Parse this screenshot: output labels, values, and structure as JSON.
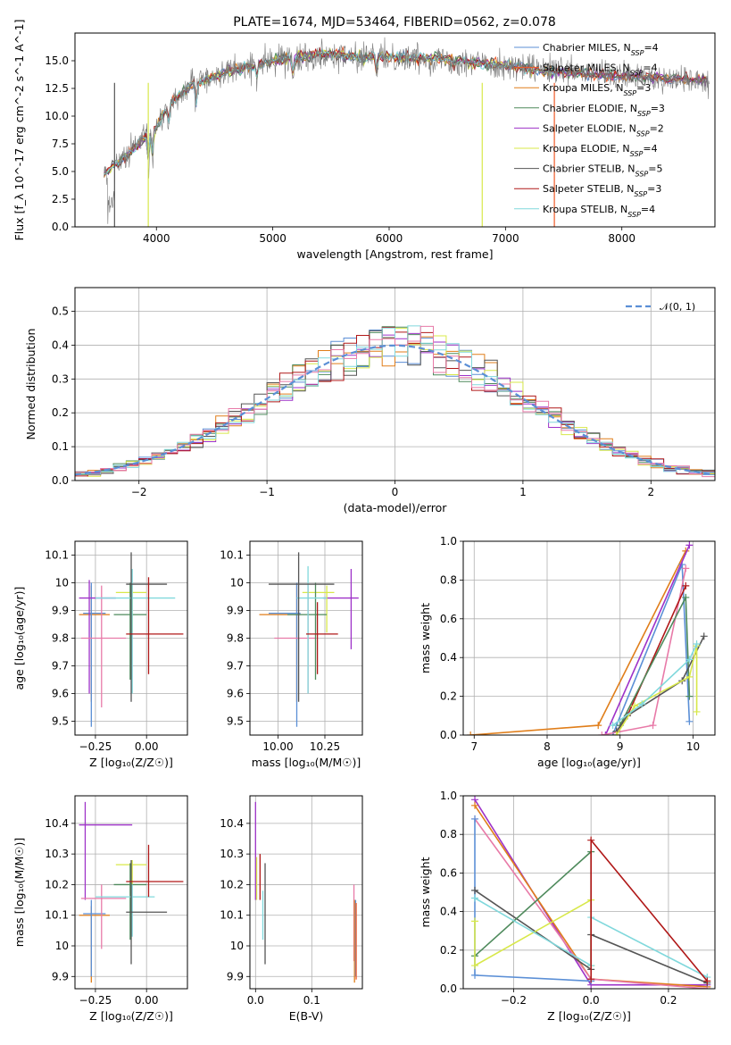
{
  "title": "PLATE=1674, MJD=53464, FIBERID=0562, z=0.078",
  "colors": {
    "Chabrier MILES": "#5b8fd6",
    "Salpeter MILES": "#f05a28",
    "Kroupa MILES": "#e07e1a",
    "Chabrier ELODIE": "#4e8a5c",
    "Salpeter ELODIE": "#9e32c8",
    "Kroupa ELODIE": "#d8e84a",
    "Chabrier STELIB": "#555555",
    "Salpeter STELIB": "#b01818",
    "Kroupa STELIB": "#80d8dc",
    "Pink": "#e87aa8"
  },
  "chart_data": [
    {
      "id": "spectrum",
      "type": "line",
      "xlabel": "wavelength [Angstrom, rest frame]",
      "ylabel": "Flux [f_λ 10^-17 erg cm^-2 s^-1 A^-1]",
      "xlim": [
        3300,
        8800
      ],
      "ylim": [
        0,
        17.5
      ],
      "xticks": [
        4000,
        5000,
        6000,
        7000,
        8000
      ],
      "yticks": [
        0.0,
        2.5,
        5.0,
        7.5,
        10.0,
        12.5,
        15.0
      ],
      "ytick_labels": [
        "0.0",
        "2.5",
        "5.0",
        "7.5",
        "10.0",
        "12.5",
        "15.0"
      ],
      "grid": false,
      "legend_placement": "upper-right",
      "legend": [
        {
          "label": "Chabrier MILES, N",
          "sub": "SSP",
          "eq": "=4"
        },
        {
          "label": "Salpeter MILES, N",
          "sub": "SSP",
          "eq": "=4"
        },
        {
          "label": "Kroupa MILES, N",
          "sub": "SSP",
          "eq": "=3"
        },
        {
          "label": "Chabrier ELODIE, N",
          "sub": "SSP",
          "eq": "=3"
        },
        {
          "label": "Salpeter ELODIE, N",
          "sub": "SSP",
          "eq": "=2"
        },
        {
          "label": "Kroupa ELODIE, N",
          "sub": "SSP",
          "eq": "=4"
        },
        {
          "label": "Chabrier STELIB, N",
          "sub": "SSP",
          "eq": "=5"
        },
        {
          "label": "Salpeter STELIB, N",
          "sub": "SSP",
          "eq": "=3"
        },
        {
          "label": "Kroupa STELIB, N",
          "sub": "SSP",
          "eq": "=4"
        }
      ],
      "legend_colors": [
        "#5b8fd6",
        "#f05a28",
        "#e07e1a",
        "#4e8a5c",
        "#9e32c8",
        "#d8e84a",
        "#555555",
        "#b01818",
        "#80d8dc"
      ],
      "series_range": [
        3550,
        8750
      ],
      "spectrum_shape": [
        [
          3550,
          4.8
        ],
        [
          3700,
          6.0
        ],
        [
          3900,
          8.0
        ],
        [
          4000,
          9.0
        ],
        [
          4100,
          11.0
        ],
        [
          4300,
          12.8
        ],
        [
          4600,
          14.0
        ],
        [
          5000,
          15.0
        ],
        [
          5400,
          15.6
        ],
        [
          5800,
          15.3
        ],
        [
          6000,
          15.3
        ],
        [
          6400,
          15.2
        ],
        [
          6800,
          14.8
        ],
        [
          7200,
          14.3
        ],
        [
          7450,
          14.0
        ],
        [
          8000,
          13.6
        ],
        [
          8750,
          13.2
        ]
      ]
    },
    {
      "id": "residuals",
      "type": "bar",
      "xlabel": "(data-model)/error",
      "ylabel": "Normed distribution",
      "xlim": [
        -2.5,
        2.5
      ],
      "ylim": [
        0,
        0.57
      ],
      "xticks": [
        -2,
        -1,
        0,
        1,
        2
      ],
      "xtick_labels": [
        "−2",
        "−1",
        "0",
        "1",
        "2"
      ],
      "yticks": [
        0.0,
        0.1,
        0.2,
        0.3,
        0.4,
        0.5
      ],
      "ytick_labels": [
        "0.0",
        "0.1",
        "0.2",
        "0.3",
        "0.4",
        "0.5"
      ],
      "grid": true,
      "legend_placement": "upper-right",
      "legend": [
        {
          "label": "𝒩(0, 1)"
        }
      ],
      "bin_width": 0.1,
      "curve": {
        "name": "𝒩(0, 1)",
        "mean": 0,
        "sigma": 1,
        "color": "#5b8fd6"
      },
      "histogram_colors": [
        "#5b8fd6",
        "#e07e1a",
        "#4e8a5c",
        "#9e32c8",
        "#d8e84a",
        "#555555",
        "#b01818",
        "#80d8dc",
        "#e87aa8"
      ]
    },
    {
      "id": "age-vs-Z",
      "type": "scatter",
      "xlabel": "Z [log₁₀(Z/Z☉)]",
      "ylabel": "age [log₁₀(age/yr)]",
      "xlim": [
        -0.35,
        0.2
      ],
      "ylim": [
        9.45,
        10.15
      ],
      "xticks": [
        -0.25,
        0.0
      ],
      "xtick_labels": [
        "−0.25",
        "0.00"
      ],
      "yticks": [
        9.5,
        9.6,
        9.7,
        9.8,
        9.9,
        10.0,
        10.1
      ],
      "grid": true,
      "points": [
        {
          "x": -0.27,
          "xlo": -0.33,
          "xhi": -0.18,
          "y": 9.885,
          "ylo": 9.57,
          "yhi": 9.99,
          "color": "#e07e1a"
        },
        {
          "x": -0.27,
          "xlo": -0.31,
          "xhi": -0.2,
          "y": 9.89,
          "ylo": 9.48,
          "yhi": 10.0,
          "color": "#5b8fd6"
        },
        {
          "x": -0.28,
          "xlo": -0.33,
          "xhi": -0.15,
          "y": 9.945,
          "ylo": 9.6,
          "yhi": 10.01,
          "color": "#9e32c8"
        },
        {
          "x": -0.22,
          "xlo": -0.32,
          "xhi": -0.1,
          "y": 9.8,
          "ylo": 9.55,
          "yhi": 9.99,
          "color": "#e87aa8"
        },
        {
          "x": -0.07,
          "xlo": -0.15,
          "xhi": 0.0,
          "y": 9.965,
          "ylo": 9.82,
          "yhi": 9.99,
          "color": "#d8e84a"
        },
        {
          "x": -0.08,
          "xlo": -0.16,
          "xhi": 0.0,
          "y": 9.885,
          "ylo": 9.65,
          "yhi": 10.0,
          "color": "#4e8a5c"
        },
        {
          "x": -0.07,
          "xlo": -0.25,
          "xhi": 0.14,
          "y": 9.945,
          "ylo": 9.6,
          "yhi": 10.05,
          "color": "#80d8dc"
        },
        {
          "x": -0.075,
          "xlo": -0.1,
          "xhi": 0.1,
          "y": 9.995,
          "ylo": 9.57,
          "yhi": 10.11,
          "color": "#555555"
        },
        {
          "x": 0.01,
          "xlo": -0.1,
          "xhi": 0.18,
          "y": 9.815,
          "ylo": 9.67,
          "yhi": 10.02,
          "color": "#b01818"
        }
      ]
    },
    {
      "id": "age-vs-mass",
      "type": "scatter",
      "xlabel": "mass [log₁₀(M/M☉)]",
      "ylabel": "",
      "xlim": [
        9.85,
        10.45
      ],
      "ylim": [
        9.45,
        10.15
      ],
      "xticks": [
        10.0,
        10.25
      ],
      "xtick_labels": [
        "10.00",
        "10.25"
      ],
      "yticks": [
        9.5,
        9.6,
        9.7,
        9.8,
        9.9,
        10.0,
        10.1
      ],
      "grid": true,
      "points": [
        {
          "x": 10.1,
          "xlo": 9.9,
          "xhi": 10.12,
          "y": 9.885,
          "ylo": 9.57,
          "yhi": 9.99,
          "color": "#e07e1a"
        },
        {
          "x": 10.1,
          "xlo": 9.95,
          "xhi": 10.12,
          "y": 9.89,
          "ylo": 9.48,
          "yhi": 10.0,
          "color": "#5b8fd6"
        },
        {
          "x": 10.39,
          "xlo": 10.24,
          "xhi": 10.43,
          "y": 9.945,
          "ylo": 9.76,
          "yhi": 10.05,
          "color": "#9e32c8"
        },
        {
          "x": 10.16,
          "xlo": 9.98,
          "xhi": 10.2,
          "y": 9.8,
          "ylo": 9.6,
          "yhi": 9.99,
          "color": "#e87aa8"
        },
        {
          "x": 10.26,
          "xlo": 10.13,
          "xhi": 10.3,
          "y": 9.965,
          "ylo": 9.82,
          "yhi": 9.99,
          "color": "#d8e84a"
        },
        {
          "x": 10.2,
          "xlo": 10.05,
          "xhi": 10.26,
          "y": 9.885,
          "ylo": 9.65,
          "yhi": 10.0,
          "color": "#4e8a5c"
        },
        {
          "x": 10.16,
          "xlo": 10.1,
          "xhi": 10.26,
          "y": 9.945,
          "ylo": 9.6,
          "yhi": 10.06,
          "color": "#80d8dc"
        },
        {
          "x": 10.11,
          "xlo": 9.95,
          "xhi": 10.3,
          "y": 9.995,
          "ylo": 9.57,
          "yhi": 10.11,
          "color": "#555555"
        },
        {
          "x": 10.21,
          "xlo": 10.15,
          "xhi": 10.32,
          "y": 9.815,
          "ylo": 9.67,
          "yhi": 9.93,
          "color": "#b01818"
        }
      ]
    },
    {
      "id": "weight-vs-age",
      "type": "line",
      "xlabel": "age [log₁₀(age/yr)]",
      "ylabel": "mass weight",
      "xlim": [
        6.85,
        10.3
      ],
      "ylim": [
        0,
        1.0
      ],
      "xticks": [
        7,
        8,
        9,
        10
      ],
      "yticks": [
        0.0,
        0.2,
        0.4,
        0.6,
        0.8,
        1.0
      ],
      "ytick_labels": [
        "0.0",
        "0.2",
        "0.4",
        "0.6",
        "0.8",
        "1.0"
      ],
      "grid": true,
      "series": [
        {
          "color": "#e07e1a",
          "points": [
            [
              6.95,
              0.0
            ],
            [
              8.7,
              0.05
            ],
            [
              9.9,
              0.95
            ]
          ]
        },
        {
          "color": "#5b8fd6",
          "points": [
            [
              8.9,
              0.0
            ],
            [
              8.95,
              0.05
            ],
            [
              9.85,
              0.88
            ],
            [
              9.95,
              0.07
            ]
          ]
        },
        {
          "color": "#9e32c8",
          "points": [
            [
              8.8,
              0.0
            ],
            [
              9.95,
              0.98
            ]
          ]
        },
        {
          "color": "#e87aa8",
          "points": [
            [
              8.75,
              0.0
            ],
            [
              9.45,
              0.05
            ],
            [
              9.9,
              0.86
            ]
          ]
        },
        {
          "color": "#b01818",
          "points": [
            [
              8.95,
              0.0
            ],
            [
              9.1,
              0.1
            ],
            [
              9.9,
              0.77
            ]
          ]
        },
        {
          "color": "#4e8a5c",
          "points": [
            [
              9.0,
              0.05
            ],
            [
              9.9,
              0.71
            ],
            [
              9.95,
              0.2
            ]
          ]
        },
        {
          "color": "#555555",
          "points": [
            [
              8.95,
              0.02
            ],
            [
              9.1,
              0.1
            ],
            [
              9.85,
              0.28
            ],
            [
              10.15,
              0.51
            ]
          ]
        },
        {
          "color": "#d8e84a",
          "points": [
            [
              8.95,
              0.0
            ],
            [
              9.2,
              0.15
            ],
            [
              9.95,
              0.3
            ],
            [
              10.05,
              0.46
            ],
            [
              10.05,
              0.12
            ]
          ]
        },
        {
          "color": "#80d8dc",
          "points": [
            [
              8.9,
              0.05
            ],
            [
              9.3,
              0.16
            ],
            [
              9.95,
              0.39
            ],
            [
              10.05,
              0.47
            ]
          ]
        }
      ]
    },
    {
      "id": "mass-vs-Z",
      "type": "scatter",
      "xlabel": "Z [log₁₀(Z/Z☉)]",
      "ylabel": "mass [log₁₀(M/M☉)]",
      "xlim": [
        -0.35,
        0.2
      ],
      "ylim": [
        9.86,
        10.49
      ],
      "xticks": [
        -0.25,
        0.0
      ],
      "xtick_labels": [
        "−0.25",
        "0.00"
      ],
      "yticks": [
        9.9,
        10.0,
        10.1,
        10.2,
        10.3,
        10.4
      ],
      "grid": true,
      "points": [
        {
          "x": -0.27,
          "xlo": -0.33,
          "xhi": -0.18,
          "y": 10.1,
          "ylo": 9.88,
          "yhi": 10.13,
          "color": "#e07e1a"
        },
        {
          "x": -0.27,
          "xlo": -0.31,
          "xhi": -0.2,
          "y": 10.105,
          "ylo": 9.9,
          "yhi": 10.15,
          "color": "#5b8fd6"
        },
        {
          "x": -0.3,
          "xlo": -0.33,
          "xhi": -0.07,
          "y": 10.395,
          "ylo": 10.15,
          "yhi": 10.47,
          "color": "#9e32c8"
        },
        {
          "x": -0.22,
          "xlo": -0.32,
          "xhi": -0.1,
          "y": 10.155,
          "ylo": 9.99,
          "yhi": 10.2,
          "color": "#e87aa8"
        },
        {
          "x": -0.07,
          "xlo": -0.15,
          "xhi": 0.0,
          "y": 10.265,
          "ylo": 10.2,
          "yhi": 10.28,
          "color": "#d8e84a"
        },
        {
          "x": -0.08,
          "xlo": -0.16,
          "xhi": 0.0,
          "y": 10.2,
          "ylo": 10.02,
          "yhi": 10.27,
          "color": "#4e8a5c"
        },
        {
          "x": -0.07,
          "xlo": -0.25,
          "xhi": 0.04,
          "y": 10.16,
          "ylo": 10.03,
          "yhi": 10.2,
          "color": "#80d8dc"
        },
        {
          "x": -0.075,
          "xlo": -0.1,
          "xhi": 0.1,
          "y": 10.11,
          "ylo": 9.94,
          "yhi": 10.28,
          "color": "#555555"
        },
        {
          "x": 0.01,
          "xlo": -0.1,
          "xhi": 0.18,
          "y": 10.21,
          "ylo": 10.16,
          "yhi": 10.33,
          "color": "#b01818"
        }
      ]
    },
    {
      "id": "mass-vs-EBV",
      "type": "scatter",
      "xlabel": "E(B-V)",
      "ylabel": "",
      "xlim": [
        -0.01,
        0.19
      ],
      "ylim": [
        9.86,
        10.49
      ],
      "xticks": [
        0.0,
        0.1
      ],
      "xtick_labels": [
        "0.0",
        "0.1"
      ],
      "yticks": [
        9.9,
        10.0,
        10.1,
        10.2,
        10.3,
        10.4
      ],
      "grid": true,
      "points": [
        {
          "x": 0.0,
          "y": 10.4,
          "ylo": 10.15,
          "yhi": 10.47,
          "color": "#9e32c8"
        },
        {
          "x": 0.002,
          "y": 10.2,
          "ylo": 10.15,
          "yhi": 10.29,
          "color": "#d8e84a"
        },
        {
          "x": 0.008,
          "y": 10.22,
          "ylo": 10.15,
          "yhi": 10.3,
          "color": "#b01818"
        },
        {
          "x": 0.013,
          "y": 10.1,
          "ylo": 10.02,
          "yhi": 10.18,
          "color": "#80d8dc"
        },
        {
          "x": 0.017,
          "y": 10.1,
          "ylo": 9.94,
          "yhi": 10.27,
          "color": "#555555"
        },
        {
          "x": 0.175,
          "y": 10.05,
          "ylo": 9.95,
          "yhi": 10.2,
          "color": "#e87aa8"
        },
        {
          "x": 0.176,
          "y": 10.0,
          "ylo": 9.88,
          "yhi": 10.15,
          "color": "#e07e1a"
        },
        {
          "x": 0.178,
          "y": 10.0,
          "ylo": 9.9,
          "yhi": 10.15,
          "color": "#5b8fd6"
        },
        {
          "x": 0.179,
          "y": 10.05,
          "ylo": 9.89,
          "yhi": 10.14,
          "color": "#f05a28"
        }
      ]
    },
    {
      "id": "weight-vs-Z",
      "type": "line",
      "xlabel": "Z [log₁₀(Z/Z☉)]",
      "ylabel": "mass weight",
      "xlim": [
        -0.33,
        0.32
      ],
      "ylim": [
        0,
        1.0
      ],
      "xticks": [
        -0.2,
        0.0,
        0.2
      ],
      "xtick_labels": [
        "−0.2",
        "0.0",
        "0.2"
      ],
      "yticks": [
        0.0,
        0.2,
        0.4,
        0.6,
        0.8,
        1.0
      ],
      "ytick_labels": [
        "0.0",
        "0.2",
        "0.4",
        "0.6",
        "0.8",
        "1.0"
      ],
      "grid": true,
      "series": [
        {
          "color": "#9e32c8",
          "points": [
            [
              -0.3,
              0.98
            ],
            [
              0.0,
              0.02
            ],
            [
              0.3,
              0.02
            ]
          ]
        },
        {
          "color": "#e07e1a",
          "points": [
            [
              -0.3,
              0.95
            ],
            [
              0.0,
              0.05
            ],
            [
              0.3,
              0.01
            ]
          ]
        },
        {
          "color": "#e87aa8",
          "points": [
            [
              -0.3,
              0.88
            ],
            [
              0.0,
              0.05
            ],
            [
              0.3,
              0.0
            ]
          ]
        },
        {
          "color": "#5b8fd6",
          "points": [
            [
              -0.3,
              0.88
            ],
            [
              -0.3,
              0.07
            ],
            [
              0.0,
              0.04
            ]
          ]
        },
        {
          "color": "#555555",
          "points": [
            [
              -0.3,
              0.51
            ],
            [
              0.0,
              0.1
            ],
            [
              0.0,
              0.28
            ],
            [
              0.3,
              0.03
            ]
          ]
        },
        {
          "color": "#4e8a5c",
          "points": [
            [
              -0.3,
              0.17
            ],
            [
              0.0,
              0.71
            ],
            [
              0.0,
              0.12
            ]
          ]
        },
        {
          "color": "#d8e84a",
          "points": [
            [
              -0.3,
              0.35
            ],
            [
              -0.3,
              0.12
            ],
            [
              0.0,
              0.46
            ],
            [
              0.0,
              0.12
            ]
          ]
        },
        {
          "color": "#80d8dc",
          "points": [
            [
              -0.3,
              0.47
            ],
            [
              0.0,
              0.12
            ],
            [
              0.0,
              0.37
            ],
            [
              0.3,
              0.06
            ]
          ]
        },
        {
          "color": "#b01818",
          "points": [
            [
              0.0,
              0.05
            ],
            [
              0.0,
              0.77
            ],
            [
              0.3,
              0.04
            ]
          ]
        }
      ]
    }
  ]
}
